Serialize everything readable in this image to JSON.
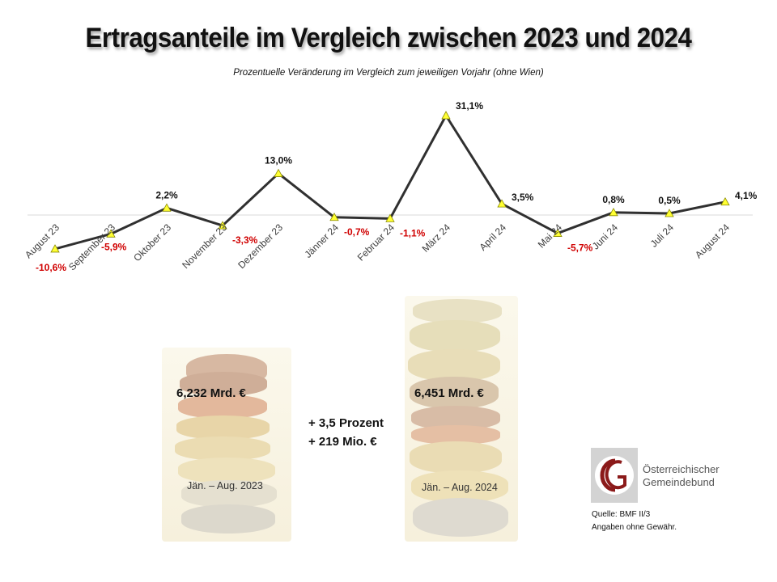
{
  "title": "Ertragsanteile im Vergleich zwischen 2023 und 2024",
  "subtitle": "Prozentuelle Veränderung im Vergleich zum jeweiligen Vorjahr (ohne Wien)",
  "colors": {
    "line": "#303030",
    "marker_fill": "#ffff33",
    "marker_stroke": "#8a8a00",
    "negative_label": "#d00000",
    "positive_label": "#111111",
    "zero_line": "#d9d9d9",
    "logo_red": "#8b1a1a"
  },
  "chart_data": {
    "type": "line",
    "title": "Prozentuelle Veränderung im Vergleich zum jeweiligen Vorjahr (ohne Wien)",
    "categories": [
      "August 23",
      "September 23",
      "Oktober  23",
      "November 23",
      "Dezember 23",
      "Jänner 24",
      "Februar 24",
      "März 24",
      "April 24",
      "Mai 24",
      "Juni 24",
      "Juli 24",
      "August 24"
    ],
    "series": [
      {
        "name": "Veränderung zum Vorjahr",
        "values": [
          -10.6,
          -5.9,
          2.2,
          -3.3,
          13.0,
          -0.7,
          -1.1,
          31.1,
          3.5,
          -5.7,
          0.8,
          0.5,
          4.1
        ],
        "labels": [
          "-10,6%",
          "-5,9%",
          "2,2%",
          "-3,3%",
          "13,0%",
          "-0,7%",
          "-1,1%",
          "31,1%",
          "3,5%",
          "-5,7%",
          "0,8%",
          "0,5%",
          "4,1%"
        ]
      }
    ],
    "xlabel": "",
    "ylabel": "",
    "ylim": [
      -12,
      32
    ],
    "grid": false,
    "zero_line": true,
    "legend": "none"
  },
  "comparison": {
    "left_amount": "6,232 Mrd. €",
    "left_period": "Jän. – Aug. 2023",
    "right_amount": "6,451 Mrd. €",
    "right_period": "Jän. – Aug. 2024",
    "delta_percent": "+ 3,5 Prozent",
    "delta_absolute": "+ 219 Mio. €"
  },
  "logo": {
    "line1": "Österreichischer",
    "line2": "Gemeindebund"
  },
  "source": {
    "line1": "Quelle: BMF II/3",
    "line2": "Angaben ohne Gewähr."
  }
}
